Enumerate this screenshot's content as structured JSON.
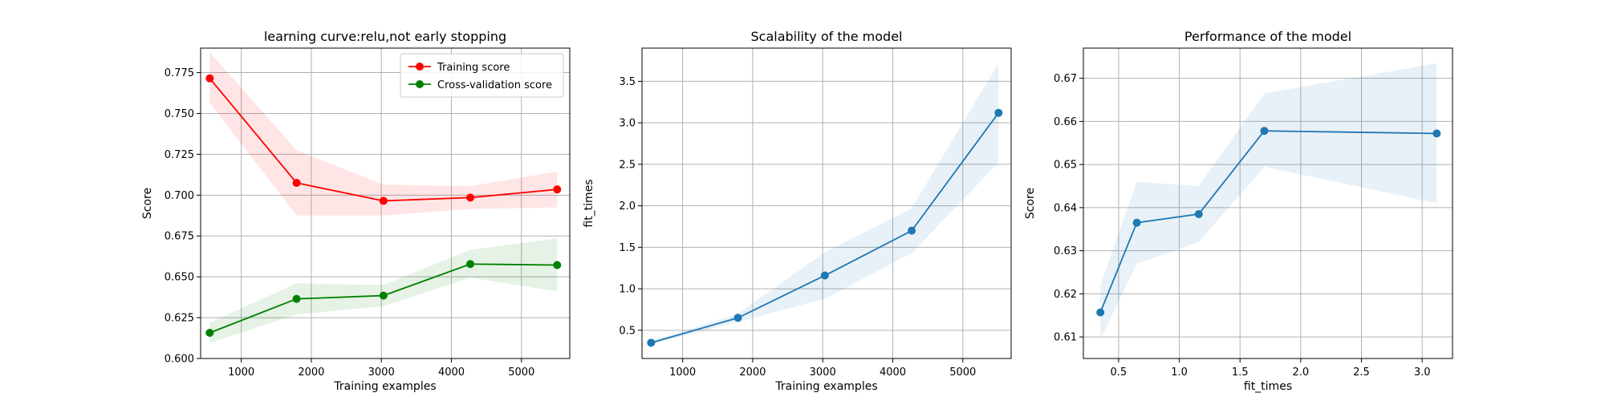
{
  "chart_data": [
    {
      "type": "line",
      "title": "learning curve:relu,not early stopping",
      "xlabel": "Training examples",
      "ylabel": "Score",
      "xlim": [
        420,
        5690
      ],
      "ylim": [
        0.6,
        0.79
      ],
      "xticks": [
        1000,
        2000,
        3000,
        4000,
        5000
      ],
      "xtick_labels": [
        "1000",
        "2000",
        "3000",
        "4000",
        "5000"
      ],
      "yticks": [
        0.6,
        0.625,
        0.65,
        0.675,
        0.7,
        0.725,
        0.75,
        0.775
      ],
      "ytick_labels": [
        "0.600",
        "0.625",
        "0.650",
        "0.675",
        "0.700",
        "0.725",
        "0.750",
        "0.775"
      ],
      "grid": true,
      "legend": "top-right",
      "x": [
        550,
        1790,
        3030,
        4270,
        5510
      ],
      "series": [
        {
          "name": "Training score",
          "color": "#ff0000",
          "values": [
            0.7715,
            0.7075,
            0.6965,
            0.6985,
            0.7035
          ],
          "lower": [
            0.7565,
            0.6875,
            0.6875,
            0.6915,
            0.6925
          ],
          "upper": [
            0.7875,
            0.7275,
            0.7065,
            0.7055,
            0.7145
          ]
        },
        {
          "name": "Cross-validation score",
          "color": "#008000",
          "values": [
            0.6157,
            0.6365,
            0.6385,
            0.6578,
            0.6572
          ],
          "lower": [
            0.6095,
            0.627,
            0.632,
            0.6495,
            0.641
          ],
          "upper": [
            0.622,
            0.646,
            0.645,
            0.6665,
            0.6735
          ]
        }
      ]
    },
    {
      "type": "line",
      "title": "Scalability of the model",
      "xlabel": "Training examples",
      "ylabel": "fit_times",
      "xlim": [
        420,
        5690
      ],
      "ylim": [
        0.16,
        3.9
      ],
      "xticks": [
        1000,
        2000,
        3000,
        4000,
        5000
      ],
      "xtick_labels": [
        "1000",
        "2000",
        "3000",
        "4000",
        "5000"
      ],
      "yticks": [
        0.5,
        1.0,
        1.5,
        2.0,
        2.5,
        3.0,
        3.5
      ],
      "ytick_labels": [
        "0.5",
        "1.0",
        "1.5",
        "2.0",
        "2.5",
        "3.0",
        "3.5"
      ],
      "grid": true,
      "x": [
        550,
        1790,
        3030,
        4270,
        5510
      ],
      "series": [
        {
          "color": "#1f77b4",
          "values": [
            0.35,
            0.65,
            1.16,
            1.7,
            3.12
          ],
          "lower": [
            0.33,
            0.6,
            0.88,
            1.43,
            2.52
          ],
          "upper": [
            0.37,
            0.7,
            1.44,
            1.97,
            3.72
          ]
        }
      ]
    },
    {
      "type": "line",
      "title": "Performance of the model",
      "xlabel": "fit_times",
      "ylabel": "Score",
      "xlim": [
        0.21,
        3.25
      ],
      "ylim": [
        0.605,
        0.677
      ],
      "xticks": [
        0.5,
        1.0,
        1.5,
        2.0,
        2.5,
        3.0
      ],
      "xtick_labels": [
        "0.5",
        "1.0",
        "1.5",
        "2.0",
        "2.5",
        "3.0"
      ],
      "yticks": [
        0.61,
        0.62,
        0.63,
        0.64,
        0.65,
        0.66,
        0.67
      ],
      "ytick_labels": [
        "0.61",
        "0.62",
        "0.63",
        "0.64",
        "0.65",
        "0.66",
        "0.67"
      ],
      "grid": true,
      "x": [
        0.35,
        0.65,
        1.16,
        1.7,
        3.12
      ],
      "series": [
        {
          "color": "#1f77b4",
          "values": [
            0.6157,
            0.6365,
            0.6385,
            0.6578,
            0.6572
          ],
          "lower": [
            0.6095,
            0.627,
            0.632,
            0.6495,
            0.641
          ],
          "upper": [
            0.622,
            0.646,
            0.645,
            0.6665,
            0.6735
          ]
        }
      ]
    }
  ]
}
